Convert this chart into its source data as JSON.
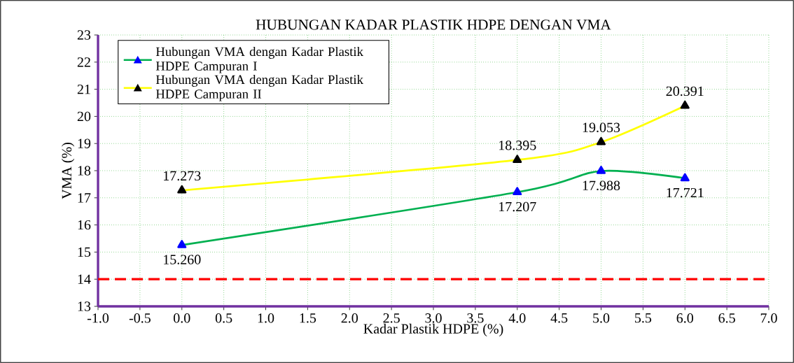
{
  "chart_data": {
    "type": "line",
    "title": "HUBUNGAN KADAR PLASTIK HDPE DENGAN VMA",
    "xlabel": "Kadar Plastik HDPE (%)",
    "ylabel": "VMA (%)",
    "xlim": [
      -1,
      7
    ],
    "xticks": [
      {
        "value": -1,
        "label": "-1.0"
      },
      {
        "value": -0.5,
        "label": "-0.5"
      },
      {
        "value": 0,
        "label": "0.0"
      },
      {
        "value": 0.5,
        "label": "0.5"
      },
      {
        "value": 1,
        "label": "1.0"
      },
      {
        "value": 1.5,
        "label": "1.5"
      },
      {
        "value": 2,
        "label": "2.0"
      },
      {
        "value": 2.5,
        "label": "2.5"
      },
      {
        "value": 3,
        "label": "3.0"
      },
      {
        "value": 3.5,
        "label": "3.5"
      },
      {
        "value": 4,
        "label": "4.0"
      },
      {
        "value": 4.5,
        "label": "4.5"
      },
      {
        "value": 5,
        "label": "5.0"
      },
      {
        "value": 5.5,
        "label": "5.5"
      },
      {
        "value": 6,
        "label": "6.0"
      },
      {
        "value": 6.5,
        "label": "6.5"
      },
      {
        "value": 7,
        "label": "7.0"
      }
    ],
    "ylim": [
      13,
      23
    ],
    "yticks": [
      13,
      14,
      15,
      16,
      17,
      18,
      19,
      20,
      21,
      22,
      23
    ],
    "x": [
      0,
      4,
      5,
      6
    ],
    "series": [
      {
        "name": "Hubungan VMA dengan Kadar Plastik HDPE Campuran I",
        "color": "#00b050",
        "values": [
          15.26,
          17.207,
          17.988,
          17.721
        ],
        "value_labels": [
          "15.260",
          "17.207",
          "17.988",
          "17.721"
        ]
      },
      {
        "name": "Hubungan VMA dengan Kadar Plastik HDPE Campuran II",
        "color": "#ffff00",
        "values": [
          17.273,
          18.395,
          19.053,
          20.391
        ],
        "value_labels": [
          "17.273",
          "18.395",
          "19.053",
          "20.391"
        ]
      }
    ],
    "ref_lines": [
      {
        "axis": "y",
        "value": 14,
        "color": "#ff0000",
        "line_style": "dashed"
      }
    ],
    "grid": true,
    "legend": "top left",
    "marker": "triangle",
    "line_style": "solid"
  }
}
